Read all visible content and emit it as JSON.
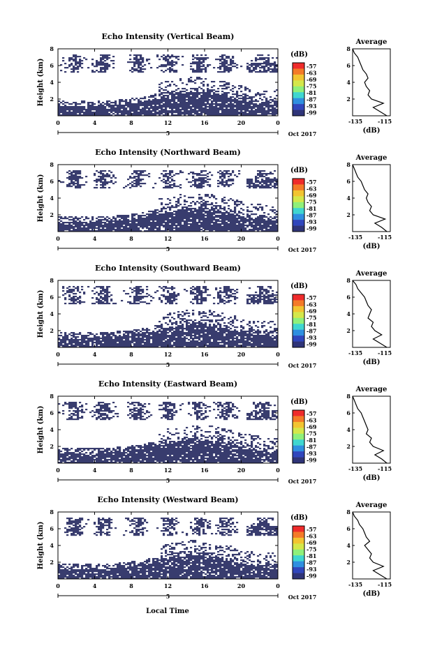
{
  "xlabel_bottom": "Local Time",
  "colorbar": {
    "unit": "(dB)",
    "labels": [
      "-57",
      "-63",
      "-69",
      "-75",
      "-81",
      "-87",
      "-93",
      "-99"
    ],
    "colors": [
      "#ef2b2b",
      "#f47a28",
      "#f2c431",
      "#d4e74a",
      "#8ff07a",
      "#3fd6d0",
      "#2f8fe0",
      "#3046bc",
      "#2f3478"
    ]
  },
  "chart_data": [
    {
      "type": "heatmap",
      "title": "Echo Intensity (Vertical Beam)",
      "ylabel": "Height (km)",
      "xticks": [
        "0",
        "4",
        "8",
        "12",
        "16",
        "20",
        "0"
      ],
      "yticks": [
        "2",
        "4",
        "6",
        "8"
      ],
      "ylim": [
        0,
        8
      ],
      "xlim": [
        0,
        24
      ],
      "date_label": "5",
      "date_suffix": "Oct 2017",
      "fill_color": "#383c6e",
      "profile": {
        "title": "Average",
        "xlabel": "(dB)",
        "xticks": [
          "-135",
          "-115"
        ],
        "yticks": [
          "2",
          "4",
          "6",
          "8"
        ],
        "points": [
          [
            -116,
            0
          ],
          [
            -120,
            0.5
          ],
          [
            -124,
            1.0
          ],
          [
            -118,
            1.5
          ],
          [
            -125,
            2.0
          ],
          [
            -127,
            2.5
          ],
          [
            -126,
            3.0
          ],
          [
            -128,
            3.5
          ],
          [
            -129,
            4.0
          ],
          [
            -127,
            4.5
          ],
          [
            -128,
            5.0
          ],
          [
            -130,
            5.5
          ],
          [
            -131,
            6.0
          ],
          [
            -132,
            6.5
          ],
          [
            -133,
            7.0
          ],
          [
            -135,
            7.5
          ],
          [
            -136,
            8.0
          ]
        ]
      }
    },
    {
      "type": "heatmap",
      "title": "Echo Intensity (Northward Beam)",
      "ylabel": "Height (km)",
      "xticks": [
        "0",
        "4",
        "8",
        "12",
        "16",
        "20",
        "0"
      ],
      "yticks": [
        "2",
        "4",
        "6",
        "8"
      ],
      "ylim": [
        0,
        8
      ],
      "xlim": [
        0,
        24
      ],
      "date_label": "5",
      "date_suffix": "Oct 2017",
      "fill_color": "#383c6e",
      "profile": {
        "title": "Average",
        "xlabel": "(dB)",
        "xticks": [
          "-135",
          "-115"
        ],
        "yticks": [
          "2",
          "4",
          "6",
          "8"
        ],
        "points": [
          [
            -116,
            0
          ],
          [
            -119,
            0.5
          ],
          [
            -123,
            1.0
          ],
          [
            -117,
            1.5
          ],
          [
            -124,
            2.0
          ],
          [
            -126,
            2.5
          ],
          [
            -125,
            3.0
          ],
          [
            -127,
            3.5
          ],
          [
            -128,
            4.0
          ],
          [
            -127,
            4.5
          ],
          [
            -129,
            5.0
          ],
          [
            -130,
            5.5
          ],
          [
            -131,
            6.0
          ],
          [
            -133,
            6.5
          ],
          [
            -134,
            7.0
          ],
          [
            -135,
            7.5
          ],
          [
            -136,
            8.0
          ]
        ]
      }
    },
    {
      "type": "heatmap",
      "title": "Echo Intensity (Southward Beam)",
      "ylabel": "Height (km)",
      "xticks": [
        "0",
        "4",
        "8",
        "12",
        "16",
        "20",
        "0"
      ],
      "yticks": [
        "2",
        "4",
        "6",
        "8"
      ],
      "ylim": [
        0,
        8
      ],
      "xlim": [
        0,
        24
      ],
      "date_label": "5",
      "date_suffix": "Oct 2017",
      "fill_color": "#383c6e",
      "profile": {
        "title": "Average",
        "xlabel": "(dB)",
        "xticks": [
          "-135",
          "-115"
        ],
        "yticks": [
          "2",
          "4",
          "6",
          "8"
        ],
        "points": [
          [
            -116,
            0
          ],
          [
            -120,
            0.5
          ],
          [
            -124,
            1.0
          ],
          [
            -119,
            1.5
          ],
          [
            -123,
            2.0
          ],
          [
            -125,
            2.5
          ],
          [
            -124,
            3.0
          ],
          [
            -127,
            3.5
          ],
          [
            -126,
            4.0
          ],
          [
            -125,
            4.5
          ],
          [
            -127,
            5.0
          ],
          [
            -128,
            5.5
          ],
          [
            -129,
            6.0
          ],
          [
            -131,
            6.5
          ],
          [
            -133,
            7.0
          ],
          [
            -134,
            7.5
          ],
          [
            -136,
            8.0
          ]
        ]
      }
    },
    {
      "type": "heatmap",
      "title": "Echo Intensity (Eastward Beam)",
      "ylabel": "Height (km)",
      "xticks": [
        "0",
        "4",
        "8",
        "12",
        "16",
        "20",
        "0"
      ],
      "yticks": [
        "2",
        "4",
        "6",
        "8"
      ],
      "ylim": [
        0,
        8
      ],
      "xlim": [
        0,
        24
      ],
      "date_label": "5",
      "date_suffix": "Oct 2017",
      "fill_color": "#383c6e",
      "profile": {
        "title": "Average",
        "xlabel": "(dB)",
        "xticks": [
          "-135",
          "-115"
        ],
        "yticks": [
          "2",
          "4",
          "6",
          "8"
        ],
        "points": [
          [
            -116,
            0
          ],
          [
            -119,
            0.5
          ],
          [
            -123,
            1.0
          ],
          [
            -118,
            1.5
          ],
          [
            -124,
            2.0
          ],
          [
            -126,
            2.5
          ],
          [
            -125,
            3.0
          ],
          [
            -128,
            3.5
          ],
          [
            -127,
            4.0
          ],
          [
            -128,
            4.5
          ],
          [
            -129,
            5.0
          ],
          [
            -130,
            5.5
          ],
          [
            -131,
            6.0
          ],
          [
            -133,
            6.5
          ],
          [
            -134,
            7.0
          ],
          [
            -135,
            7.5
          ],
          [
            -136,
            8.0
          ]
        ]
      }
    },
    {
      "type": "heatmap",
      "title": "Echo Intensity (Westward Beam)",
      "ylabel": "Height (km)",
      "xticks": [
        "0",
        "4",
        "8",
        "12",
        "16",
        "20",
        "0"
      ],
      "yticks": [
        "2",
        "4",
        "6",
        "8"
      ],
      "ylim": [
        0,
        8
      ],
      "xlim": [
        0,
        24
      ],
      "date_label": "5",
      "date_suffix": "Oct 2017",
      "fill_color": "#383c6e",
      "profile": {
        "title": "Average",
        "xlabel": "(dB)",
        "xticks": [
          "-135",
          "-115"
        ],
        "yticks": [
          "2",
          "4",
          "6",
          "8"
        ],
        "points": [
          [
            -116,
            0
          ],
          [
            -120,
            0.5
          ],
          [
            -124,
            1.0
          ],
          [
            -118,
            1.5
          ],
          [
            -124,
            2.0
          ],
          [
            -126,
            2.5
          ],
          [
            -125,
            3.0
          ],
          [
            -127,
            3.5
          ],
          [
            -129,
            4.0
          ],
          [
            -126,
            4.5
          ],
          [
            -128,
            5.0
          ],
          [
            -129,
            5.5
          ],
          [
            -130,
            6.0
          ],
          [
            -132,
            6.5
          ],
          [
            -133,
            7.0
          ],
          [
            -135,
            7.5
          ],
          [
            -136,
            8.0
          ]
        ]
      }
    }
  ]
}
